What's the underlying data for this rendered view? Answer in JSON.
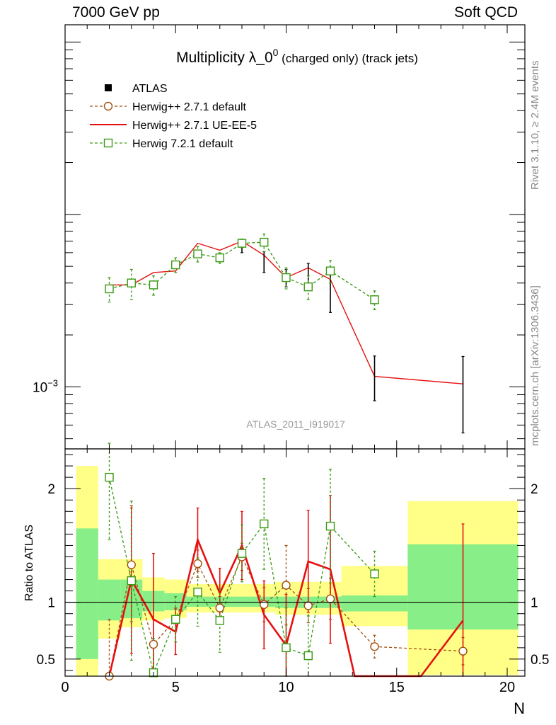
{
  "header": {
    "left": "7000 GeV pp",
    "right": "Soft QCD"
  },
  "side": {
    "top": "Rivet 3.1.10, ≥ 2.4M events",
    "bottom": "mcplots.cern.ch [arXiv:1306.3436]"
  },
  "colors": {
    "atlas": "#000000",
    "herwigpp_default": "#a05010",
    "herwigpp_ue": "#e61010",
    "herwig7": "#3a9a14",
    "band_inner": "#88ee88",
    "band_outer": "#ffff88"
  },
  "chart_data": {
    "type": "scatter",
    "title": {
      "main": "Multiplicity λ_0",
      "sup": "0",
      "tail": " (charged only) (track jets)"
    },
    "analysis_label": "ATLAS_2011_I919017",
    "xlabel": "N",
    "ylabel_ratio": "Ratio to ATLAS",
    "xlim": [
      0,
      20.8
    ],
    "ylim_main_log10": [
      -3.36,
      -0.9
    ],
    "ylim_ratio": [
      0.35,
      2.35
    ],
    "x_ticks": [
      0,
      5,
      10,
      15,
      20
    ],
    "x_tick_labels": [
      "0",
      "5",
      "10",
      "15",
      "20"
    ],
    "y_main_ticks": [
      {
        "value": 0.001,
        "base": "10",
        "exp": "−3"
      }
    ],
    "ratio_ticks": [
      0.5,
      1,
      2
    ],
    "ratio_tick_labels": [
      "0.5",
      "1",
      "2"
    ],
    "legend": [
      {
        "key": "atlas",
        "label": "ATLAS"
      },
      {
        "key": "herwigpp_default",
        "label": "Herwig++ 2.7.1 default"
      },
      {
        "key": "herwigpp_ue",
        "label": "Herwig++ 2.7.1 UE-EE-5"
      },
      {
        "key": "herwig7",
        "label": "Herwig 7.2.1 default"
      }
    ],
    "atlas": {
      "x": [
        8,
        9,
        10,
        11,
        12,
        14,
        18
      ],
      "y": [
        0.0066,
        0.0053,
        0.0043,
        0.0045,
        0.0039,
        0.00115,
        0.00104
      ],
      "err_up": [
        0.0006,
        0.0008,
        0.0005,
        0.0007,
        0.0008,
        0.00036,
        0.00046
      ],
      "err_dn": [
        0.0006,
        0.0007,
        0.0005,
        0.0005,
        0.0012,
        0.00032,
        0.0005
      ]
    },
    "herwigpp_ue": {
      "x": [
        2,
        3,
        4,
        5,
        6,
        7,
        8,
        9,
        10,
        11,
        12,
        14,
        18
      ],
      "y": [
        0.0039,
        0.0039,
        0.0046,
        0.0047,
        0.0068,
        0.0062,
        0.007,
        0.0058,
        0.0043,
        0.0049,
        0.0042,
        0.00115,
        0.00104
      ]
    },
    "herwig7": {
      "x": [
        2,
        3,
        4,
        5,
        6,
        7,
        8,
        9,
        10,
        11,
        12,
        14
      ],
      "y": [
        0.0037,
        0.004,
        0.0039,
        0.0051,
        0.0059,
        0.0056,
        0.0068,
        0.0069,
        0.0043,
        0.0038,
        0.0047,
        0.0032
      ],
      "err": [
        0.0006,
        0.0008,
        0.0005,
        0.0005,
        0.0006,
        0.0004,
        0.0004,
        0.0008,
        0.0006,
        0.0006,
        0.0007,
        0.0004
      ]
    },
    "ratio": {
      "bands": [
        {
          "x0": 0.5,
          "x1": 1.5,
          "outer": [
            0.35,
            2.2
          ],
          "inner": [
            0.5,
            1.65
          ]
        },
        {
          "x0": 1.5,
          "x1": 2.5,
          "outer": [
            0.68,
            1.38
          ],
          "inner": [
            0.84,
            1.2
          ]
        },
        {
          "x0": 2.5,
          "x1": 3.5,
          "outer": [
            0.78,
            1.38
          ],
          "inner": [
            0.86,
            1.2
          ]
        },
        {
          "x0": 3.5,
          "x1": 4.5,
          "outer": [
            0.84,
            1.22
          ],
          "inner": [
            0.92,
            1.1
          ]
        },
        {
          "x0": 4.5,
          "x1": 5.5,
          "outer": [
            0.86,
            1.2
          ],
          "inner": [
            0.93,
            1.08
          ]
        },
        {
          "x0": 5.5,
          "x1": 9.5,
          "outer": [
            0.91,
            1.16
          ],
          "inner": [
            0.96,
            1.05
          ]
        },
        {
          "x0": 9.5,
          "x1": 12.5,
          "outer": [
            0.89,
            1.18
          ],
          "inner": [
            0.95,
            1.05
          ]
        },
        {
          "x0": 12.5,
          "x1": 15.5,
          "outer": [
            0.79,
            1.32
          ],
          "inner": [
            0.92,
            1.06
          ]
        },
        {
          "x0": 15.5,
          "x1": 20.5,
          "outer": [
            0.36,
            1.89
          ],
          "inner": [
            0.76,
            1.51
          ]
        }
      ],
      "herwigpp_default": {
        "x": [
          2,
          3,
          4,
          5,
          6,
          7,
          8,
          9,
          10,
          11,
          12,
          14,
          18
        ],
        "y": [
          0.35,
          1.33,
          0.63,
          0.85,
          1.34,
          0.95,
          1.4,
          0.98,
          1.15,
          0.97,
          1.03,
          0.61,
          0.57
        ],
        "err": [
          0.5,
          0.5,
          0.22,
          0.1,
          0.12,
          0.1,
          0.12,
          0.15,
          0.35,
          0.15,
          0.18,
          0.1,
          0.12
        ]
      },
      "herwigpp_ue": {
        "x": [
          2,
          3,
          4,
          5,
          6,
          7,
          8,
          9,
          10,
          11,
          12,
          13.1,
          16.1,
          18
        ],
        "y": [
          0.2,
          1.2,
          0.85,
          0.74,
          1.55,
          1.08,
          1.5,
          0.89,
          0.62,
          1.36,
          1.29,
          0.35,
          0.35,
          0.84
        ],
        "err": [
          0.0,
          0.65,
          0.58,
          0.2,
          0.28,
          0.22,
          0.3,
          0.3,
          0.45,
          0.45,
          0.65,
          0.0,
          0.0,
          0.85
        ]
      },
      "herwig7": {
        "x": [
          2,
          3,
          4,
          5,
          6,
          7,
          8,
          9,
          10,
          11,
          12,
          14
        ],
        "y": [
          2.1,
          1.19,
          0.38,
          0.85,
          1.09,
          0.84,
          1.43,
          1.69,
          0.6,
          0.53,
          1.67,
          1.25
        ],
        "err": [
          0.55,
          0.7,
          0.3,
          0.2,
          0.3,
          0.28,
          0.25,
          0.4,
          0.35,
          0.35,
          0.5,
          0.2
        ]
      }
    }
  }
}
